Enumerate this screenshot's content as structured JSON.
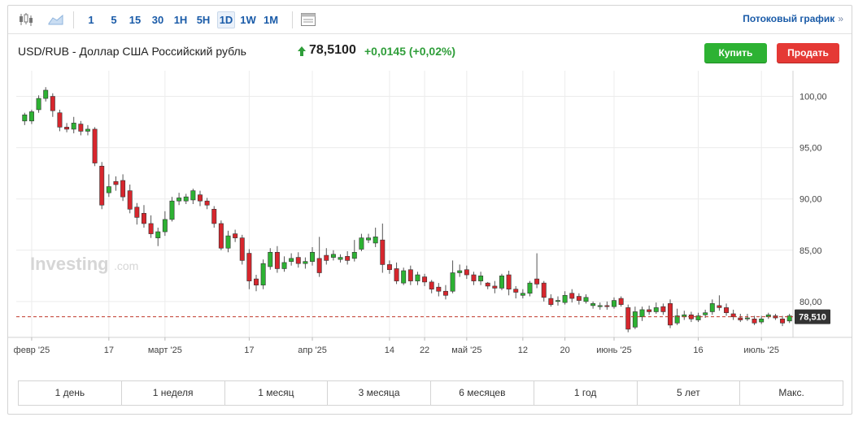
{
  "toolbar": {
    "icons": [
      "candlestick-icon",
      "area-chart-icon",
      "chart-settings-icon"
    ],
    "timeframes": [
      "1",
      "5",
      "15",
      "30",
      "1H",
      "5H",
      "1D",
      "1W",
      "1M"
    ],
    "active_timeframe": "1D",
    "stream_link": "Потоковый график",
    "stream_chevron": "»"
  },
  "header": {
    "instrument": "USD/RUB - Доллар США Российский рубль",
    "price": "78,5100",
    "change": "+0,0145",
    "change_pct": "(+0,02%)",
    "buy_label": "Купить",
    "sell_label": "Продать"
  },
  "colors": {
    "up": "#2db233",
    "down": "#d7262d",
    "accent": "#1a5ba8",
    "price_line": "#c0392b"
  },
  "chart_data": {
    "type": "candlestick",
    "watermark": "Investing.com",
    "ylim": [
      76.5,
      102.5
    ],
    "y_ticks": [
      {
        "value": 100,
        "label": "100,00"
      },
      {
        "value": 95,
        "label": "95,00"
      },
      {
        "value": 90,
        "label": "90,00"
      },
      {
        "value": 85,
        "label": "85,00"
      },
      {
        "value": 80,
        "label": "80,00"
      }
    ],
    "x_ticks": [
      {
        "index": 1,
        "label": "февр '25"
      },
      {
        "index": 12,
        "label": "17"
      },
      {
        "index": 20,
        "label": "март '25"
      },
      {
        "index": 32,
        "label": "17"
      },
      {
        "index": 41,
        "label": "апр '25"
      },
      {
        "index": 52,
        "label": "14"
      },
      {
        "index": 57,
        "label": "22"
      },
      {
        "index": 63,
        "label": "май '25"
      },
      {
        "index": 71,
        "label": "12"
      },
      {
        "index": 77,
        "label": "20"
      },
      {
        "index": 84,
        "label": "июнь '25"
      },
      {
        "index": 96,
        "label": "16"
      },
      {
        "index": 105,
        "label": "июль '25"
      }
    ],
    "current_price": 78.51,
    "current_price_label": "78,510",
    "candles": [
      [
        97.6,
        98.2,
        97.2,
        98.4
      ],
      [
        97.6,
        98.5,
        97.3,
        98.7
      ],
      [
        98.7,
        99.8,
        98.4,
        100.1
      ],
      [
        99.8,
        100.6,
        99.5,
        100.9
      ],
      [
        100.0,
        98.6,
        98.0,
        100.3
      ],
      [
        98.4,
        97.0,
        96.6,
        98.7
      ],
      [
        97.0,
        96.8,
        96.5,
        97.4
      ],
      [
        96.8,
        97.4,
        96.4,
        98.0
      ],
      [
        97.3,
        96.6,
        96.2,
        97.6
      ],
      [
        96.6,
        96.8,
        96.2,
        97.2
      ],
      [
        96.8,
        93.5,
        93.2,
        97.0
      ],
      [
        93.2,
        89.4,
        89.0,
        93.6
      ],
      [
        90.6,
        91.2,
        90.2,
        92.4
      ],
      [
        91.7,
        91.4,
        90.8,
        92.2
      ],
      [
        91.8,
        90.2,
        89.8,
        92.4
      ],
      [
        90.8,
        89.0,
        88.6,
        91.4
      ],
      [
        89.2,
        88.2,
        87.5,
        89.6
      ],
      [
        88.6,
        87.6,
        87.2,
        89.4
      ],
      [
        87.6,
        86.6,
        86.2,
        88.4
      ],
      [
        86.2,
        86.8,
        85.4,
        87.2
      ],
      [
        86.8,
        88.0,
        86.4,
        88.8
      ],
      [
        88.0,
        89.8,
        87.8,
        90.2
      ],
      [
        89.8,
        90.1,
        89.4,
        90.6
      ],
      [
        89.8,
        90.2,
        89.5,
        90.5
      ],
      [
        89.9,
        90.8,
        89.5,
        91.0
      ],
      [
        90.4,
        89.8,
        89.3,
        90.8
      ],
      [
        89.8,
        89.4,
        89.0,
        90.1
      ],
      [
        89.0,
        87.6,
        87.2,
        89.3
      ],
      [
        87.6,
        85.2,
        85.0,
        87.9
      ],
      [
        85.2,
        86.4,
        84.8,
        86.9
      ],
      [
        86.6,
        86.2,
        85.8,
        87.0
      ],
      [
        86.2,
        84.0,
        83.6,
        86.5
      ],
      [
        84.7,
        82.0,
        81.2,
        85.1
      ],
      [
        82.2,
        81.6,
        81.0,
        82.6
      ],
      [
        81.6,
        83.7,
        81.2,
        84.1
      ],
      [
        83.4,
        84.8,
        83.1,
        85.2
      ],
      [
        84.8,
        83.2,
        82.8,
        85.4
      ],
      [
        83.2,
        83.8,
        82.9,
        84.4
      ],
      [
        83.9,
        84.2,
        83.5,
        84.7
      ],
      [
        84.3,
        83.7,
        83.3,
        84.8
      ],
      [
        83.7,
        83.9,
        83.2,
        84.3
      ],
      [
        83.9,
        84.8,
        83.5,
        85.3
      ],
      [
        84.2,
        82.8,
        82.4,
        86.3
      ],
      [
        84.5,
        84.0,
        83.6,
        85.2
      ],
      [
        84.3,
        84.6,
        84.0,
        85.0
      ],
      [
        84.1,
        84.3,
        83.8,
        84.6
      ],
      [
        84.4,
        84.0,
        83.6,
        84.9
      ],
      [
        84.2,
        84.8,
        83.9,
        86.0
      ],
      [
        85.1,
        86.2,
        84.9,
        86.6
      ],
      [
        86.0,
        86.2,
        85.7,
        86.6
      ],
      [
        85.7,
        86.3,
        85.3,
        87.2
      ],
      [
        86.0,
        83.6,
        82.8,
        87.6
      ],
      [
        83.6,
        83.1,
        82.7,
        84.0
      ],
      [
        83.2,
        82.0,
        81.7,
        83.8
      ],
      [
        81.8,
        83.0,
        81.6,
        83.3
      ],
      [
        83.1,
        82.0,
        81.6,
        83.5
      ],
      [
        82.0,
        82.6,
        81.6,
        82.9
      ],
      [
        82.4,
        81.9,
        81.5,
        82.7
      ],
      [
        81.9,
        81.2,
        80.8,
        82.1
      ],
      [
        81.4,
        81.0,
        80.5,
        81.8
      ],
      [
        81.0,
        80.6,
        80.2,
        81.6
      ],
      [
        81.0,
        82.8,
        80.8,
        84.0
      ],
      [
        82.8,
        83.0,
        82.4,
        83.6
      ],
      [
        83.1,
        82.6,
        82.2,
        83.5
      ],
      [
        82.6,
        82.0,
        81.6,
        82.9
      ],
      [
        82.0,
        82.5,
        81.6,
        82.9
      ],
      [
        81.8,
        81.5,
        81.2,
        81.9
      ],
      [
        81.5,
        81.3,
        80.8,
        82.0
      ],
      [
        81.3,
        82.5,
        81.1,
        82.7
      ],
      [
        82.6,
        81.2,
        80.6,
        83.0
      ],
      [
        81.2,
        80.9,
        80.3,
        81.5
      ],
      [
        80.6,
        80.8,
        80.3,
        81.2
      ],
      [
        80.8,
        81.8,
        80.5,
        82.0
      ],
      [
        82.2,
        81.7,
        81.3,
        84.7
      ],
      [
        81.8,
        80.4,
        80.0,
        82.0
      ],
      [
        80.3,
        79.7,
        79.5,
        80.7
      ],
      [
        80.0,
        80.1,
        79.6,
        80.5
      ],
      [
        79.9,
        80.6,
        79.7,
        81.0
      ],
      [
        80.8,
        80.3,
        79.9,
        81.2
      ],
      [
        80.5,
        80.1,
        79.7,
        80.8
      ],
      [
        80.0,
        80.4,
        79.8,
        80.7
      ],
      [
        79.6,
        79.8,
        79.3,
        80.0
      ],
      [
        79.5,
        79.6,
        79.2,
        79.9
      ],
      [
        79.6,
        79.5,
        79.2,
        80.0
      ],
      [
        79.5,
        80.1,
        79.3,
        80.4
      ],
      [
        80.3,
        79.7,
        79.5,
        80.5
      ],
      [
        79.4,
        77.3,
        77.0,
        79.7
      ],
      [
        77.5,
        79.0,
        77.3,
        79.5
      ],
      [
        78.5,
        79.2,
        78.1,
        79.5
      ],
      [
        79.2,
        79.0,
        78.7,
        79.6
      ],
      [
        79.0,
        79.4,
        78.8,
        79.9
      ],
      [
        79.5,
        79.0,
        78.7,
        79.8
      ],
      [
        79.8,
        77.7,
        77.4,
        80.2
      ],
      [
        77.9,
        78.6,
        77.7,
        79.3
      ],
      [
        78.5,
        78.7,
        78.2,
        79.1
      ],
      [
        78.7,
        78.3,
        78.0,
        79.0
      ],
      [
        78.2,
        78.6,
        78.0,
        78.9
      ],
      [
        78.7,
        78.9,
        78.4,
        79.2
      ],
      [
        79.0,
        79.8,
        78.7,
        80.2
      ],
      [
        79.6,
        79.4,
        79.1,
        80.6
      ],
      [
        79.4,
        78.9,
        78.6,
        79.8
      ],
      [
        78.8,
        78.5,
        78.2,
        79.2
      ],
      [
        78.4,
        78.2,
        78.0,
        78.8
      ],
      [
        78.3,
        78.4,
        78.1,
        78.8
      ],
      [
        78.3,
        77.9,
        77.7,
        78.6
      ],
      [
        78.0,
        78.3,
        77.8,
        78.6
      ],
      [
        78.5,
        78.7,
        78.3,
        78.9
      ],
      [
        78.6,
        78.4,
        78.2,
        78.8
      ],
      [
        78.3,
        77.9,
        77.6,
        78.6
      ],
      [
        78.1,
        78.6,
        77.9,
        78.8
      ]
    ]
  },
  "periods": [
    "1 день",
    "1 неделя",
    "1 месяц",
    "3 месяца",
    "6 месяцев",
    "1 год",
    "5 лет",
    "Макс."
  ]
}
